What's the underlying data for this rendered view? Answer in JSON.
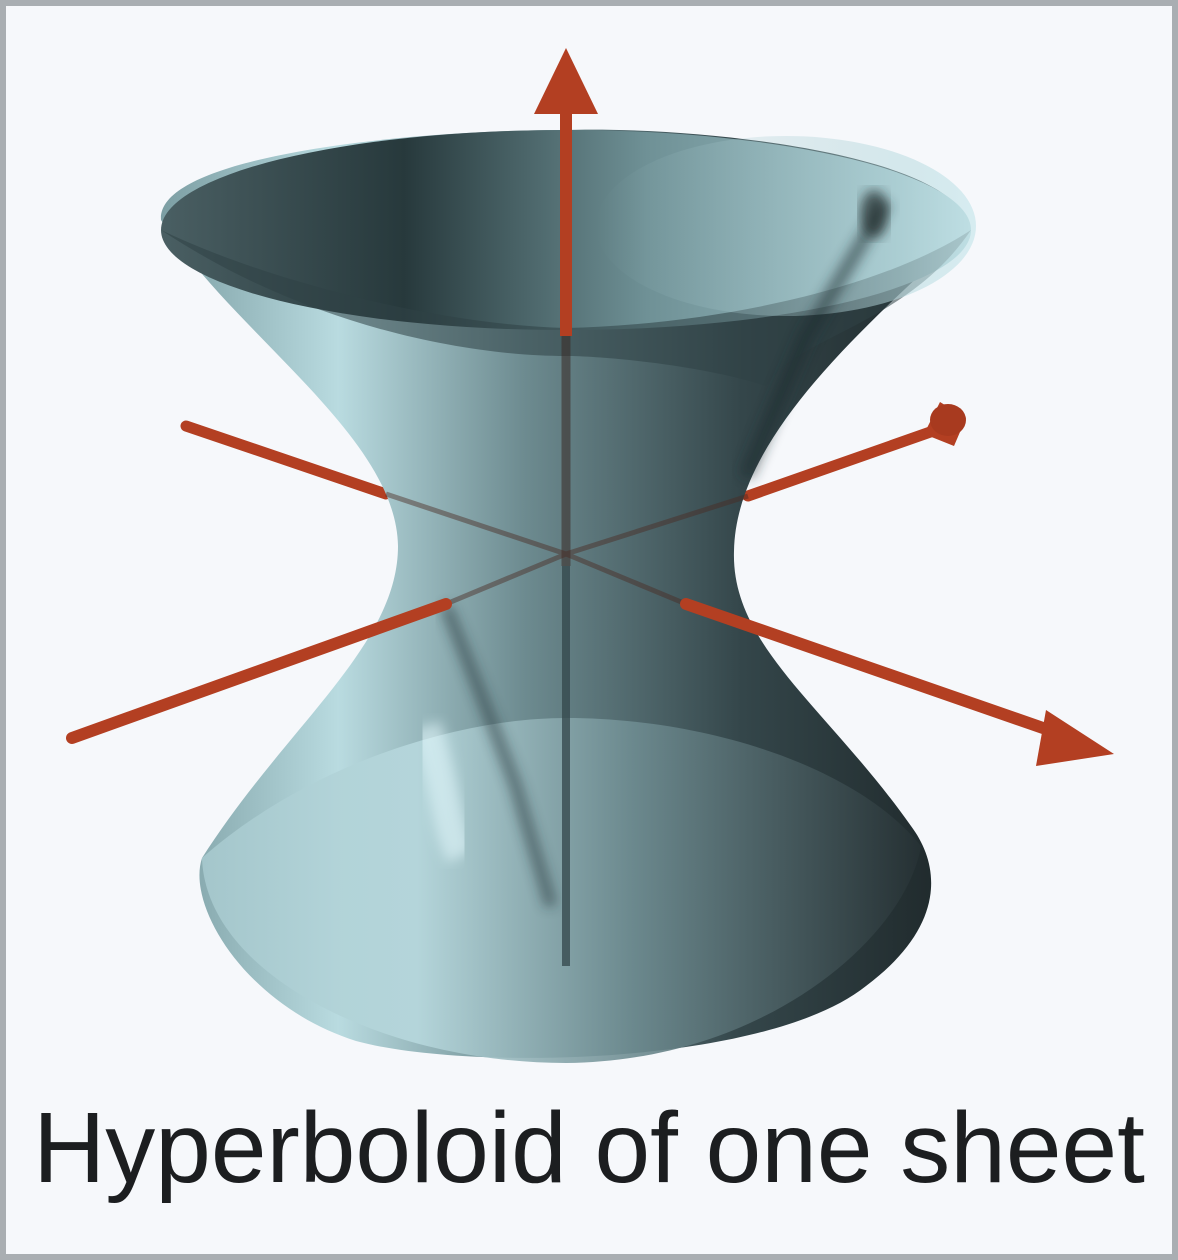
{
  "figure": {
    "caption": "Hyperboloid of one sheet",
    "surface_color": "#7fa3a9",
    "axis_color": "#b33f22",
    "background_color": "#f6f8fb",
    "border_color": "#a9aeb2"
  }
}
